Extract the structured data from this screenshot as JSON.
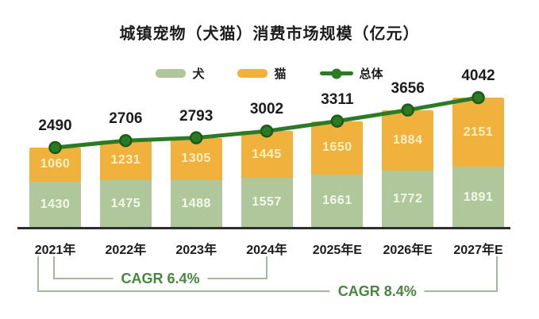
{
  "title": "城镇宠物（犬猫）消费市场规模（亿元）",
  "legend": {
    "items": [
      {
        "label": "犬",
        "marker": "swatch"
      },
      {
        "label": "猫",
        "marker": "swatch"
      },
      {
        "label": "总体",
        "marker": "line-with-dot"
      }
    ]
  },
  "chart_data": {
    "type": "bar",
    "subtype": "stacked-bars-with-total-line",
    "title": "城镇宠物（犬猫）消费市场规模（亿元）",
    "categories": [
      "2021年",
      "2022年",
      "2023年",
      "2024年",
      "2025年E",
      "2026年E",
      "2027年E"
    ],
    "series": [
      {
        "name": "犬",
        "color": "#afc79a",
        "values": [
          1430,
          1475,
          1488,
          1557,
          1661,
          1772,
          1891
        ]
      },
      {
        "name": "猫",
        "color": "#f0b23d",
        "values": [
          1060,
          1231,
          1305,
          1445,
          1650,
          1884,
          2151
        ]
      }
    ],
    "line_series": {
      "name": "总体",
      "color": "#2b7a24",
      "values": [
        2490,
        2706,
        2793,
        3002,
        3311,
        3656,
        4042
      ]
    },
    "ylim": [
      0,
      4100
    ],
    "grid": false,
    "legend_position": "top",
    "value_labels": "segment values inside bars, totals above line points"
  },
  "annotations": {
    "cagr_short": {
      "label": "CAGR 6.4%",
      "span": "2021年-2024年"
    },
    "cagr_long": {
      "label": "CAGR 8.4%",
      "span": "2021年-2027年E"
    }
  },
  "colors": {
    "dog_bar": "#afc79a",
    "cat_bar": "#f0b23d",
    "total_line": "#2b7a24",
    "total_dot_edge": "#1d5a18",
    "cat_value_label": "#faf0c4",
    "dog_value_label": "#f2f8ea",
    "total_label": "#1c1c1c",
    "axis": "#2e2e2e",
    "bracket_line": "#a3b89e",
    "cagr_text": "#47873e",
    "background": "#ffffff"
  }
}
